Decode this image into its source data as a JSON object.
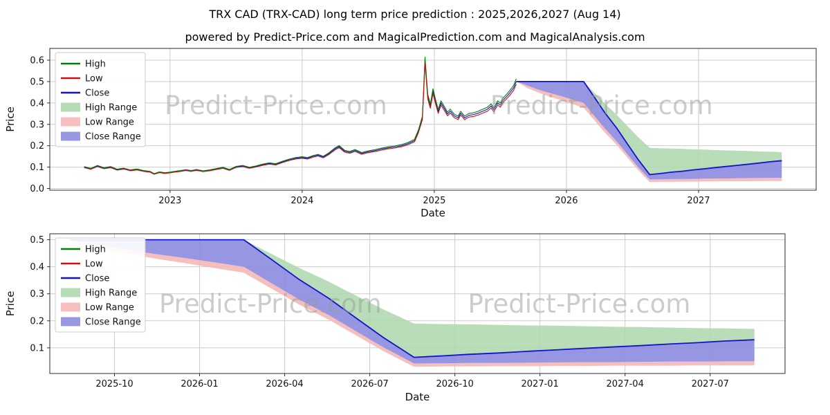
{
  "page": {
    "title": "TRX CAD (TRX-CAD) long term price prediction : 2025,2026,2027 (Aug 14)",
    "subtitle": "powered by Predict-Price.com and MagicalPrediction.com and MagicalAnalysis.com",
    "watermark": "Predict-Price.com"
  },
  "colors": {
    "high_line": "#008000",
    "low_line": "#cc1111",
    "close_line": "#1313c8",
    "high_range": "#aed8ae",
    "low_range": "#f6b8b8",
    "close_range": "#8d8ddf",
    "grid": "#cccccc",
    "spine": "#2a2a2a",
    "watermark": "#9a9a9a"
  },
  "legend_entries": [
    {
      "label": "High",
      "type": "line",
      "color_key": "high_line"
    },
    {
      "label": "Low",
      "type": "line",
      "color_key": "low_line"
    },
    {
      "label": "Close",
      "type": "line",
      "color_key": "close_line"
    },
    {
      "label": "High Range",
      "type": "patch",
      "color_key": "high_range"
    },
    {
      "label": "Low Range",
      "type": "patch",
      "color_key": "low_range"
    },
    {
      "label": "Close Range",
      "type": "patch",
      "color_key": "close_range"
    }
  ],
  "series": {
    "history": {
      "high_factor": 1.025,
      "low_factor": 0.975,
      "x": [
        2022.35,
        2022.4,
        2022.45,
        2022.5,
        2022.55,
        2022.6,
        2022.65,
        2022.7,
        2022.75,
        2022.8,
        2022.85,
        2022.88,
        2022.92,
        2022.96,
        2023.0,
        2023.04,
        2023.08,
        2023.12,
        2023.16,
        2023.2,
        2023.25,
        2023.3,
        2023.35,
        2023.4,
        2023.45,
        2023.5,
        2023.55,
        2023.6,
        2023.65,
        2023.7,
        2023.75,
        2023.8,
        2023.85,
        2023.9,
        2023.95,
        2024.0,
        2024.04,
        2024.08,
        2024.12,
        2024.16,
        2024.2,
        2024.25,
        2024.28,
        2024.32,
        2024.36,
        2024.4,
        2024.45,
        2024.5,
        2024.55,
        2024.6,
        2024.65,
        2024.7,
        2024.75,
        2024.8,
        2024.85,
        2024.88,
        2024.91,
        2024.93,
        2024.95,
        2024.97,
        2024.99,
        2025.01,
        2025.03,
        2025.05,
        2025.08,
        2025.1,
        2025.12,
        2025.15,
        2025.18,
        2025.2,
        2025.23,
        2025.26,
        2025.3,
        2025.33,
        2025.36,
        2025.4,
        2025.43,
        2025.45,
        2025.48,
        2025.5,
        2025.52,
        2025.55,
        2025.57,
        2025.6,
        2025.62
      ],
      "close": [
        0.1,
        0.092,
        0.105,
        0.095,
        0.1,
        0.088,
        0.093,
        0.085,
        0.089,
        0.082,
        0.078,
        0.068,
        0.076,
        0.072,
        0.075,
        0.079,
        0.082,
        0.086,
        0.082,
        0.087,
        0.081,
        0.085,
        0.091,
        0.097,
        0.087,
        0.101,
        0.105,
        0.097,
        0.103,
        0.111,
        0.117,
        0.113,
        0.124,
        0.134,
        0.141,
        0.145,
        0.141,
        0.15,
        0.156,
        0.147,
        0.162,
        0.186,
        0.196,
        0.175,
        0.169,
        0.178,
        0.164,
        0.172,
        0.177,
        0.184,
        0.19,
        0.194,
        0.2,
        0.21,
        0.224,
        0.268,
        0.33,
        0.6,
        0.43,
        0.385,
        0.455,
        0.405,
        0.36,
        0.4,
        0.37,
        0.348,
        0.362,
        0.34,
        0.33,
        0.352,
        0.33,
        0.342,
        0.346,
        0.352,
        0.36,
        0.37,
        0.386,
        0.368,
        0.4,
        0.39,
        0.412,
        0.432,
        0.446,
        0.47,
        0.5
      ]
    },
    "forecast": {
      "x": [
        2025.62,
        2025.71,
        2025.79,
        2025.87,
        2025.96,
        2026.04,
        2026.13,
        2026.21,
        2026.29,
        2026.38,
        2026.46,
        2026.54,
        2026.63,
        2026.71,
        2026.79,
        2026.88,
        2026.96,
        2027.04,
        2027.13,
        2027.21,
        2027.29,
        2027.38,
        2027.46,
        2027.54,
        2027.63
      ],
      "close": [
        0.5,
        0.5,
        0.5,
        0.5,
        0.5,
        0.5,
        0.5,
        0.428,
        0.355,
        0.283,
        0.21,
        0.138,
        0.065,
        0.07,
        0.076,
        0.081,
        0.087,
        0.092,
        0.098,
        0.103,
        0.108,
        0.114,
        0.119,
        0.125,
        0.13
      ],
      "high": [
        0.5,
        0.5,
        0.5,
        0.5,
        0.5,
        0.5,
        0.5,
        0.448,
        0.397,
        0.345,
        0.293,
        0.242,
        0.19,
        0.188,
        0.187,
        0.185,
        0.183,
        0.182,
        0.18,
        0.178,
        0.177,
        0.175,
        0.173,
        0.172,
        0.17
      ],
      "close_low": [
        0.5,
        0.48,
        0.462,
        0.447,
        0.432,
        0.417,
        0.4,
        0.34,
        0.281,
        0.221,
        0.161,
        0.102,
        0.042,
        0.043,
        0.044,
        0.044,
        0.045,
        0.046,
        0.047,
        0.047,
        0.048,
        0.049,
        0.049,
        0.05,
        0.05
      ],
      "low": [
        0.5,
        0.468,
        0.448,
        0.43,
        0.413,
        0.396,
        0.378,
        0.32,
        0.262,
        0.204,
        0.146,
        0.088,
        0.03,
        0.031,
        0.031,
        0.032,
        0.032,
        0.033,
        0.033,
        0.034,
        0.034,
        0.034,
        0.035,
        0.035,
        0.035
      ]
    }
  },
  "chart_data": [
    {
      "type": "line",
      "name": "history-and-forecast",
      "xlabel": "Date",
      "ylabel": "Price",
      "xlim": [
        2022.09,
        2027.89
      ],
      "ylim": [
        -0.008,
        0.655
      ],
      "x_ticks": [
        {
          "v": 2023,
          "label": "2023"
        },
        {
          "v": 2024,
          "label": "2024"
        },
        {
          "v": 2025,
          "label": "2025"
        },
        {
          "v": 2026,
          "label": "2026"
        },
        {
          "v": 2027,
          "label": "2027"
        }
      ],
      "y_ticks": [
        {
          "v": 0,
          "label": "0.0"
        },
        {
          "v": 0.1,
          "label": "0.1"
        },
        {
          "v": 0.2,
          "label": "0.2"
        },
        {
          "v": 0.3,
          "label": "0.3"
        },
        {
          "v": 0.4,
          "label": "0.4"
        },
        {
          "v": 0.5,
          "label": "0.5"
        },
        {
          "v": 0.6,
          "label": "0.6"
        }
      ],
      "legend_position": "upper left",
      "grid": true,
      "show_history": true,
      "watermarks": [
        {
          "fx": 0.295,
          "fy": 0.4
        },
        {
          "fx": 0.72,
          "fy": 0.4
        }
      ],
      "svg_id": "chart-main",
      "plot": {
        "l": 72,
        "t": 10,
        "r": 1180,
        "b": 215
      },
      "tick_y": 234,
      "xlabel_y": 253
    },
    {
      "type": "line",
      "name": "forecast-zoom",
      "xlabel": "Date",
      "ylabel": "Price",
      "xlim": [
        2025.56,
        2027.72
      ],
      "ylim": [
        0.005,
        0.522
      ],
      "x_ticks": [
        {
          "v": 2025.75,
          "label": "2025-10"
        },
        {
          "v": 2026.0,
          "label": "2026-01"
        },
        {
          "v": 2026.25,
          "label": "2026-04"
        },
        {
          "v": 2026.5,
          "label": "2026-07"
        },
        {
          "v": 2026.75,
          "label": "2026-10"
        },
        {
          "v": 2027.0,
          "label": "2027-01"
        },
        {
          "v": 2027.25,
          "label": "2027-04"
        },
        {
          "v": 2027.5,
          "label": "2027-07"
        }
      ],
      "y_ticks": [
        {
          "v": 0.1,
          "label": "0.1"
        },
        {
          "v": 0.2,
          "label": "0.2"
        },
        {
          "v": 0.3,
          "label": "0.3"
        },
        {
          "v": 0.4,
          "label": "0.4"
        },
        {
          "v": 0.5,
          "label": "0.5"
        }
      ],
      "legend_position": "upper left",
      "grid": true,
      "show_history": false,
      "watermarks": [
        {
          "fx": 0.3,
          "fy": 0.5
        },
        {
          "fx": 0.72,
          "fy": 0.5
        }
      ],
      "svg_id": "chart-forecast",
      "plot": {
        "l": 72,
        "t": 8,
        "r": 1135,
        "b": 210
      },
      "tick_y": 229,
      "xlabel_y": 249
    }
  ]
}
